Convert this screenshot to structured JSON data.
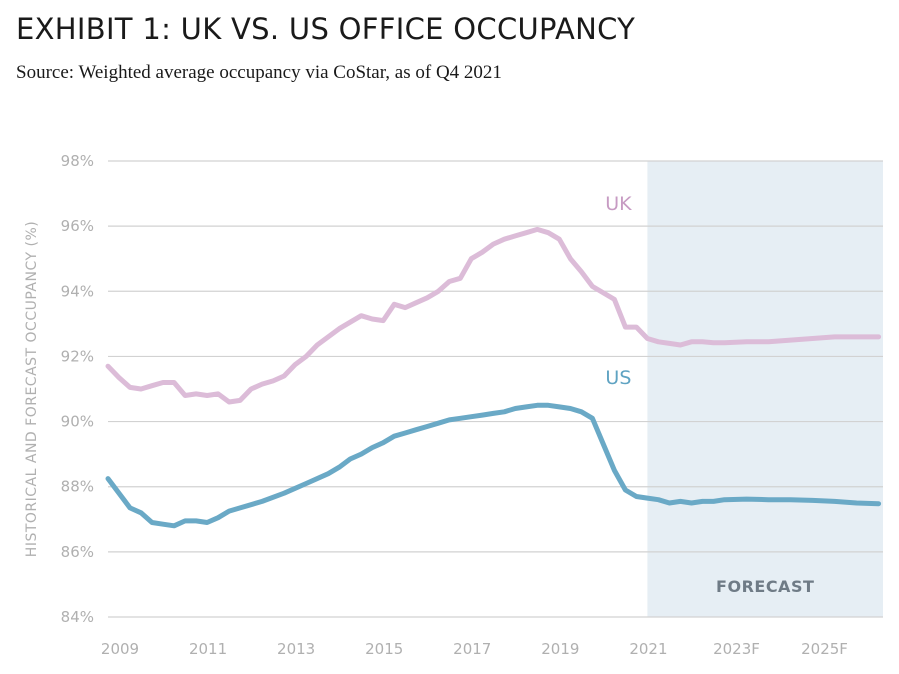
{
  "chart_data": {
    "type": "line",
    "title": "EXHIBIT 1: UK VS. US OFFICE OCCUPANCY",
    "subtitle": "Source: Weighted average occupancy via CoStar, as of Q4 2021",
    "ylabel": "HISTORICAL AND FORECAST OCCUPANCY (%)",
    "xlabel": "",
    "ylim": [
      84,
      98
    ],
    "xlim": [
      2009,
      2026.6
    ],
    "grid": true,
    "yticks": [
      84,
      86,
      88,
      90,
      92,
      94,
      96,
      98
    ],
    "ytick_labels": [
      "84%",
      "86%",
      "88%",
      "90%",
      "92%",
      "94%",
      "96%",
      "98%"
    ],
    "xticks": [
      2009,
      2011,
      2013,
      2015,
      2017,
      2019,
      2021,
      2023,
      2025
    ],
    "xtick_labels": [
      "2009",
      "2011",
      "2013",
      "2015",
      "2017",
      "2019",
      "2021",
      "2023F",
      "2025F"
    ],
    "forecast_region": {
      "start": 2021.25,
      "end": 2026.6,
      "label": "FORECAST",
      "color": "#e6eef4"
    },
    "series": [
      {
        "name": "UK",
        "color": "#dcbcd8",
        "label_color": "#c79bc3",
        "x": [
          2009.0,
          2009.25,
          2009.5,
          2009.75,
          2010.0,
          2010.25,
          2010.5,
          2010.75,
          2011.0,
          2011.25,
          2011.5,
          2011.75,
          2012.0,
          2012.25,
          2012.5,
          2012.75,
          2013.0,
          2013.25,
          2013.5,
          2013.75,
          2014.0,
          2014.25,
          2014.5,
          2014.75,
          2015.0,
          2015.25,
          2015.5,
          2015.75,
          2016.0,
          2016.25,
          2016.5,
          2016.75,
          2017.0,
          2017.25,
          2017.5,
          2017.75,
          2018.0,
          2018.25,
          2018.5,
          2018.75,
          2019.0,
          2019.25,
          2019.5,
          2019.75,
          2020.0,
          2020.25,
          2020.5,
          2020.75,
          2021.0,
          2021.25,
          2021.5,
          2021.75,
          2022.0,
          2022.25,
          2022.5,
          2022.75,
          2023.0,
          2023.5,
          2024.0,
          2024.5,
          2025.0,
          2025.5,
          2026.0,
          2026.5
        ],
        "values": [
          91.7,
          91.35,
          91.05,
          91.0,
          91.1,
          91.2,
          91.2,
          90.8,
          90.85,
          90.8,
          90.85,
          90.6,
          90.65,
          91.0,
          91.15,
          91.25,
          91.4,
          91.75,
          92.0,
          92.35,
          92.6,
          92.85,
          93.05,
          93.25,
          93.15,
          93.1,
          93.6,
          93.5,
          93.65,
          93.8,
          94.0,
          94.3,
          94.4,
          95.0,
          95.2,
          95.45,
          95.6,
          95.7,
          95.8,
          95.9,
          95.8,
          95.6,
          95.0,
          94.6,
          94.15,
          93.95,
          93.75,
          92.9,
          92.9,
          92.55,
          92.45,
          92.4,
          92.35,
          92.45,
          92.45,
          92.42,
          92.42,
          92.45,
          92.45,
          92.5,
          92.55,
          92.6,
          92.6,
          92.6
        ],
        "label_x": 2020.5,
        "label_y": 96.5
      },
      {
        "name": "US",
        "color": "#6aa9c6",
        "label_color": "#5fa3c2",
        "x": [
          2009.0,
          2009.25,
          2009.5,
          2009.75,
          2010.0,
          2010.25,
          2010.5,
          2010.75,
          2011.0,
          2011.25,
          2011.5,
          2011.75,
          2012.0,
          2012.5,
          2013.0,
          2013.5,
          2014.0,
          2014.25,
          2014.5,
          2014.75,
          2015.0,
          2015.25,
          2015.5,
          2015.75,
          2016.0,
          2016.25,
          2016.5,
          2016.75,
          2017.0,
          2017.25,
          2017.5,
          2017.75,
          2018.0,
          2018.25,
          2018.5,
          2018.75,
          2019.0,
          2019.25,
          2019.5,
          2019.75,
          2020.0,
          2020.25,
          2020.5,
          2020.75,
          2021.0,
          2021.25,
          2021.5,
          2021.75,
          2022.0,
          2022.25,
          2022.5,
          2022.75,
          2023.0,
          2023.5,
          2024.0,
          2024.5,
          2025.0,
          2025.5,
          2026.0,
          2026.5
        ],
        "values": [
          88.25,
          87.8,
          87.35,
          87.2,
          86.9,
          86.85,
          86.8,
          86.95,
          86.95,
          86.9,
          87.05,
          87.25,
          87.35,
          87.55,
          87.8,
          88.1,
          88.4,
          88.6,
          88.85,
          89.0,
          89.2,
          89.35,
          89.55,
          89.65,
          89.75,
          89.85,
          89.95,
          90.05,
          90.1,
          90.15,
          90.2,
          90.25,
          90.3,
          90.4,
          90.45,
          90.5,
          90.5,
          90.45,
          90.4,
          90.3,
          90.1,
          89.3,
          88.5,
          87.9,
          87.7,
          87.65,
          87.6,
          87.5,
          87.55,
          87.5,
          87.55,
          87.55,
          87.6,
          87.62,
          87.6,
          87.6,
          87.58,
          87.55,
          87.5,
          87.48
        ],
        "label_x": 2020.5,
        "label_y": 91.15
      }
    ]
  }
}
